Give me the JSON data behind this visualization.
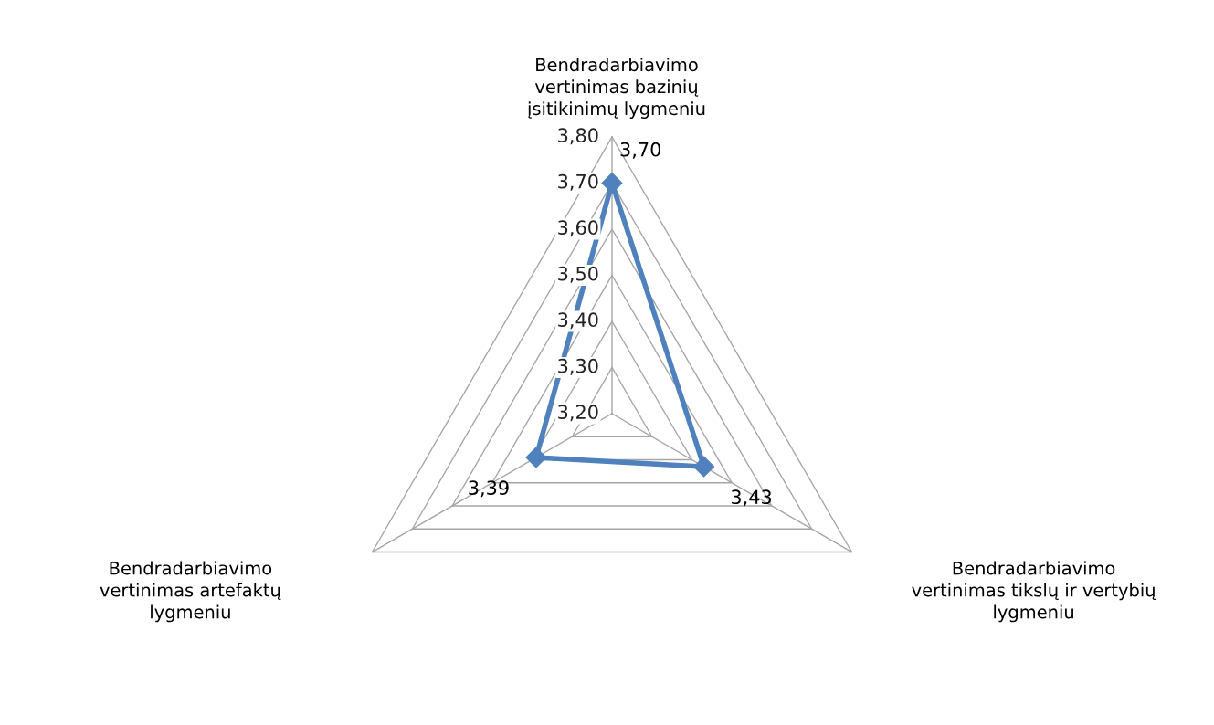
{
  "chart_data": {
    "type": "radar",
    "categories": [
      "Bendradarbiavimo\nvertinimas bazinių\nįsitikinimų lygmeniu",
      "Bendradarbiavimo\nvertinimas tikslų ir vertybių\nlygmeniu",
      "Bendradarbiavimo\nvertinimas artefaktų\nlygmeniu"
    ],
    "series": [
      {
        "color": "#4f81bd",
        "values": [
          3.7,
          3.43,
          3.39
        ],
        "value_labels": [
          "3,70",
          "3,43",
          "3,39"
        ]
      }
    ],
    "marker": "diamond",
    "ylim": [
      3.2,
      3.8
    ],
    "yticks": [
      {
        "value": 3.2,
        "label": "3,20"
      },
      {
        "value": 3.3,
        "label": "3,30"
      },
      {
        "value": 3.4,
        "label": "3,40"
      },
      {
        "value": 3.5,
        "label": "3,50"
      },
      {
        "value": 3.6,
        "label": "3,60"
      },
      {
        "value": 3.7,
        "label": "3,70"
      },
      {
        "value": 3.8,
        "label": "3,80"
      }
    ],
    "grid": true
  }
}
